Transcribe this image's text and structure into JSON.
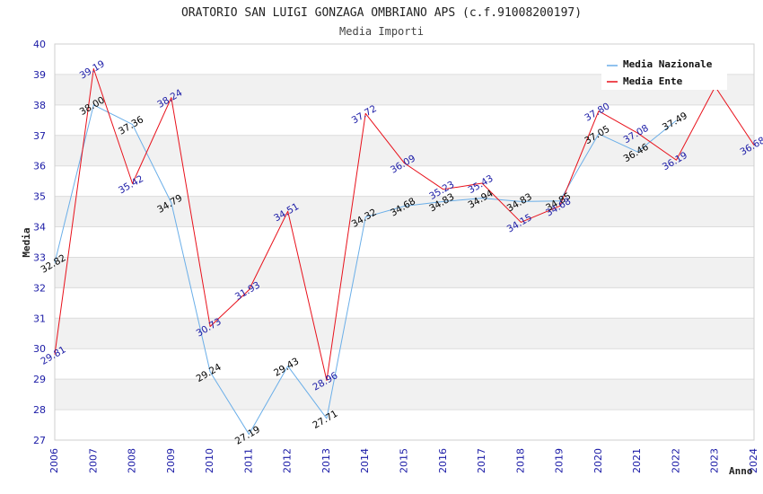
{
  "chart_data": {
    "type": "line",
    "title": "ORATORIO SAN LUIGI GONZAGA OMBRIANO APS (c.f.91008200197)",
    "subtitle": "Media Importi",
    "xlabel": "Anno",
    "ylabel": "Media",
    "ylim": [
      27,
      40
    ],
    "yticks": [
      "27",
      "28",
      "29",
      "30",
      "31",
      "32",
      "33",
      "34",
      "35",
      "36",
      "37",
      "38",
      "39",
      "40"
    ],
    "categories": [
      "2006",
      "2007",
      "2008",
      "2009",
      "2010",
      "2011",
      "2012",
      "2013",
      "2014",
      "2015",
      "2016",
      "2017",
      "2018",
      "2019",
      "2020",
      "2021",
      "2022",
      "2023",
      "2024"
    ],
    "grid": true,
    "legend_position": "top-right",
    "series": [
      {
        "name": "Media Nazionale",
        "color": "#6aaee8",
        "label_color": "#000000",
        "values": [
          32.82,
          38.0,
          37.36,
          34.79,
          29.24,
          27.19,
          29.43,
          27.71,
          34.32,
          34.68,
          34.83,
          34.94,
          34.83,
          34.85,
          37.05,
          36.46,
          37.49,
          null,
          null
        ],
        "labels": [
          "32.82",
          "38.00",
          "37.36",
          "34.79",
          "29.24",
          "27.19",
          "29.43",
          "27.71",
          "34.32",
          "34.68",
          "34.83",
          "34.94",
          "34.83",
          "34.85",
          "37.05",
          "36.46",
          "37.49",
          "",
          ""
        ]
      },
      {
        "name": "Media Ente",
        "color": "#e8101a",
        "label_color": "#1a1aa6",
        "values": [
          29.81,
          39.19,
          35.42,
          38.24,
          30.73,
          31.93,
          34.51,
          28.96,
          37.72,
          36.09,
          35.23,
          35.43,
          34.15,
          34.68,
          37.8,
          37.08,
          36.19,
          38.6,
          36.68
        ],
        "labels": [
          "29.81",
          "39.19",
          "35.42",
          "38.24",
          "30.73",
          "31.93",
          "34.51",
          "28.96",
          "37.72",
          "36.09",
          "35.23",
          "35.43",
          "34.15",
          "34.68",
          "37.80",
          "37.08",
          "36.19",
          "",
          "36.68"
        ]
      }
    ]
  }
}
